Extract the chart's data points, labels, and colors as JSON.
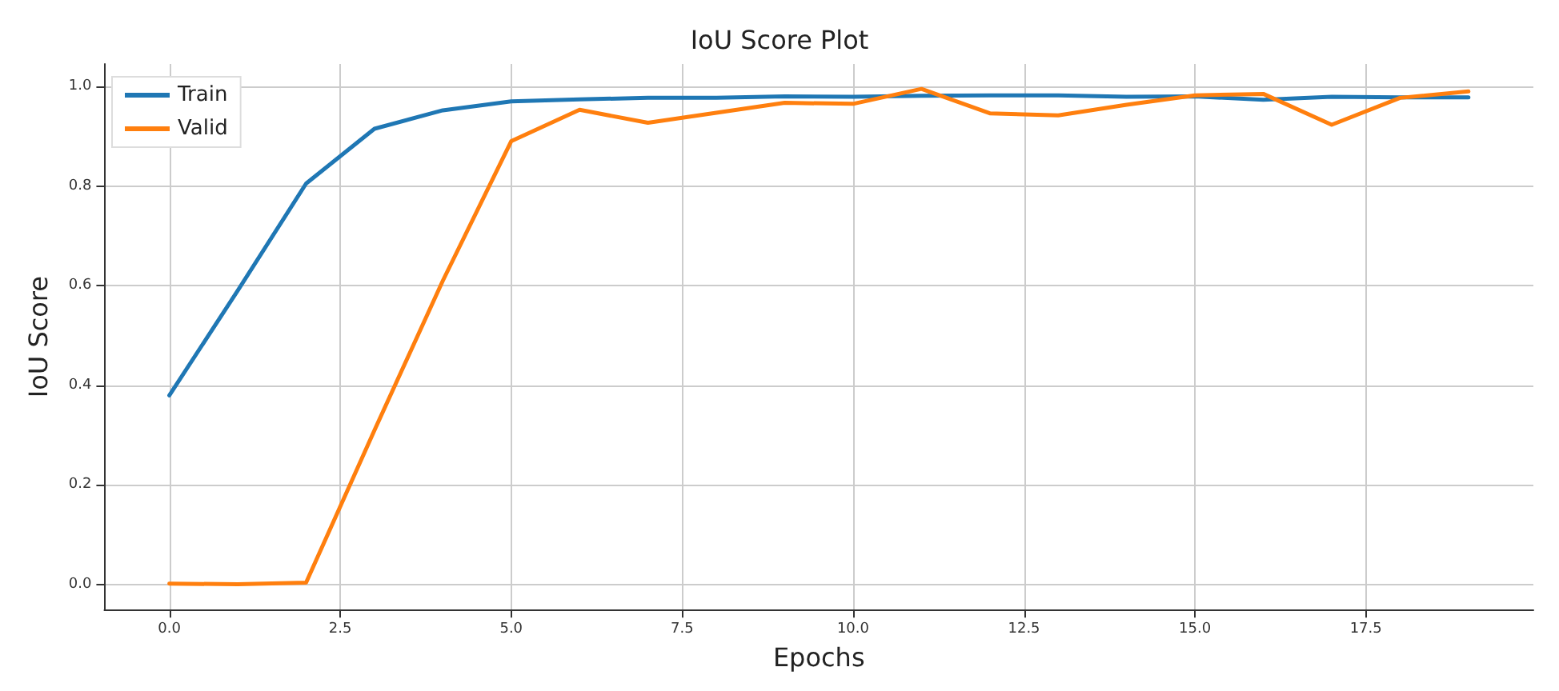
{
  "chart_data": {
    "type": "line",
    "title": "IoU Score Plot",
    "xlabel": "Epochs",
    "ylabel": "IoU Score",
    "x": [
      0,
      1,
      2,
      3,
      4,
      5,
      6,
      7,
      8,
      9,
      10,
      11,
      12,
      13,
      14,
      15,
      16,
      17,
      18,
      19
    ],
    "series": [
      {
        "name": "Train",
        "color": "#1f77b4",
        "values": [
          0.38,
          0.59,
          0.805,
          0.915,
          0.952,
          0.97,
          0.974,
          0.977,
          0.977,
          0.98,
          0.979,
          0.981,
          0.982,
          0.982,
          0.979,
          0.98,
          0.973,
          0.979,
          0.978,
          0.978
        ]
      },
      {
        "name": "Valid",
        "color": "#ff7f0e",
        "values": [
          0.002,
          0.001,
          0.004,
          0.31,
          0.61,
          0.89,
          0.953,
          0.927,
          0.947,
          0.967,
          0.965,
          0.995,
          0.946,
          0.942,
          0.963,
          0.982,
          0.985,
          0.923,
          0.977,
          0.99
        ]
      }
    ],
    "xlim": [
      -0.95,
      19.95
    ],
    "ylim": [
      -0.05,
      1.045
    ],
    "xticks": [
      {
        "value": 0,
        "label": "0.0"
      },
      {
        "value": 2.5,
        "label": "2.5"
      },
      {
        "value": 5,
        "label": "5.0"
      },
      {
        "value": 7.5,
        "label": "7.5"
      },
      {
        "value": 10,
        "label": "10.0"
      },
      {
        "value": 12.5,
        "label": "12.5"
      },
      {
        "value": 15,
        "label": "15.0"
      },
      {
        "value": 17.5,
        "label": "17.5"
      }
    ],
    "yticks": [
      {
        "value": 0,
        "label": "0.0"
      },
      {
        "value": 0.2,
        "label": "0.2"
      },
      {
        "value": 0.4,
        "label": "0.4"
      },
      {
        "value": 0.6,
        "label": "0.6"
      },
      {
        "value": 0.8,
        "label": "0.8"
      },
      {
        "value": 1,
        "label": "1.0"
      }
    ],
    "grid": true,
    "legend": "top left",
    "marker": "none",
    "line_style": "solid"
  }
}
